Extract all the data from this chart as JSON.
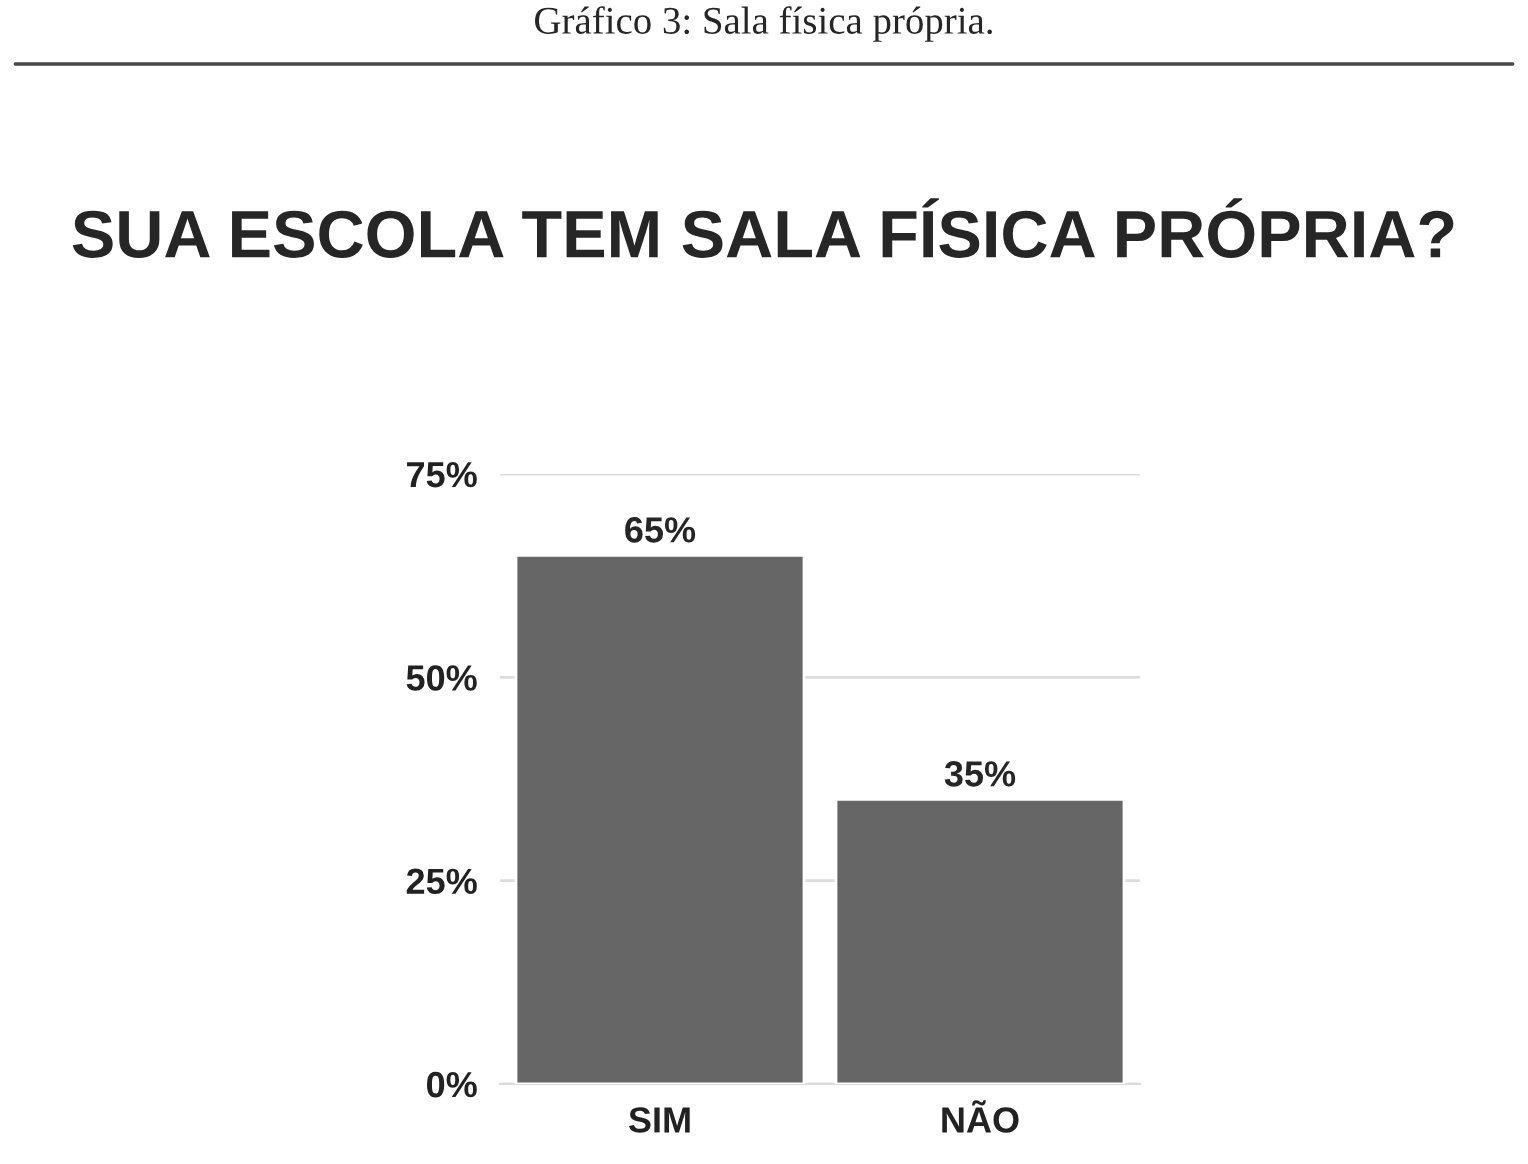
{
  "chart_data": {
    "type": "bar",
    "title": "SUA ESCOLA TEM SALA FÍSICA PRÓPRIA?",
    "annotations": [
      "Gráfico 3: Sala física própria."
    ],
    "categories": [
      "SIM",
      "NÃO"
    ],
    "values": [
      65,
      35
    ],
    "value_labels": [
      "65%",
      "35%"
    ],
    "color": "#666666",
    "ylim": [
      0,
      75
    ],
    "yticks": [
      {
        "value": 0,
        "label": "0%"
      },
      {
        "value": 25,
        "label": "25%"
      },
      {
        "value": 50,
        "label": "50%"
      },
      {
        "value": 75,
        "label": "75%"
      }
    ],
    "grid": "y",
    "legend": false
  }
}
